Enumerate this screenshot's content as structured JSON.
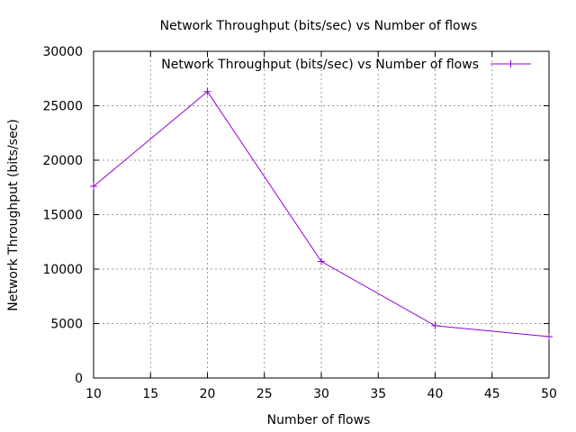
{
  "chart_data": {
    "type": "line",
    "title": "Network Throughput (bits/sec) vs Number of flows",
    "xlabel": "Number of flows",
    "ylabel": "Network Throughput (bits/sec)",
    "xlim": [
      10,
      50
    ],
    "ylim": [
      0,
      30000
    ],
    "x_ticks": [
      "10",
      "15",
      "20",
      "25",
      "30",
      "35",
      "40",
      "45",
      "50"
    ],
    "y_ticks": [
      "0",
      "5000",
      "10000",
      "15000",
      "20000",
      "25000",
      "30000"
    ],
    "grid": true,
    "legend_position": "top-right",
    "series": [
      {
        "name": "Network Throughput (bits/sec) vs Number of flows",
        "color": "#9400d3",
        "marker": "plus",
        "x": [
          10,
          20,
          30,
          40,
          50
        ],
        "y": [
          17600,
          26300,
          10700,
          4800,
          3800
        ]
      }
    ]
  }
}
